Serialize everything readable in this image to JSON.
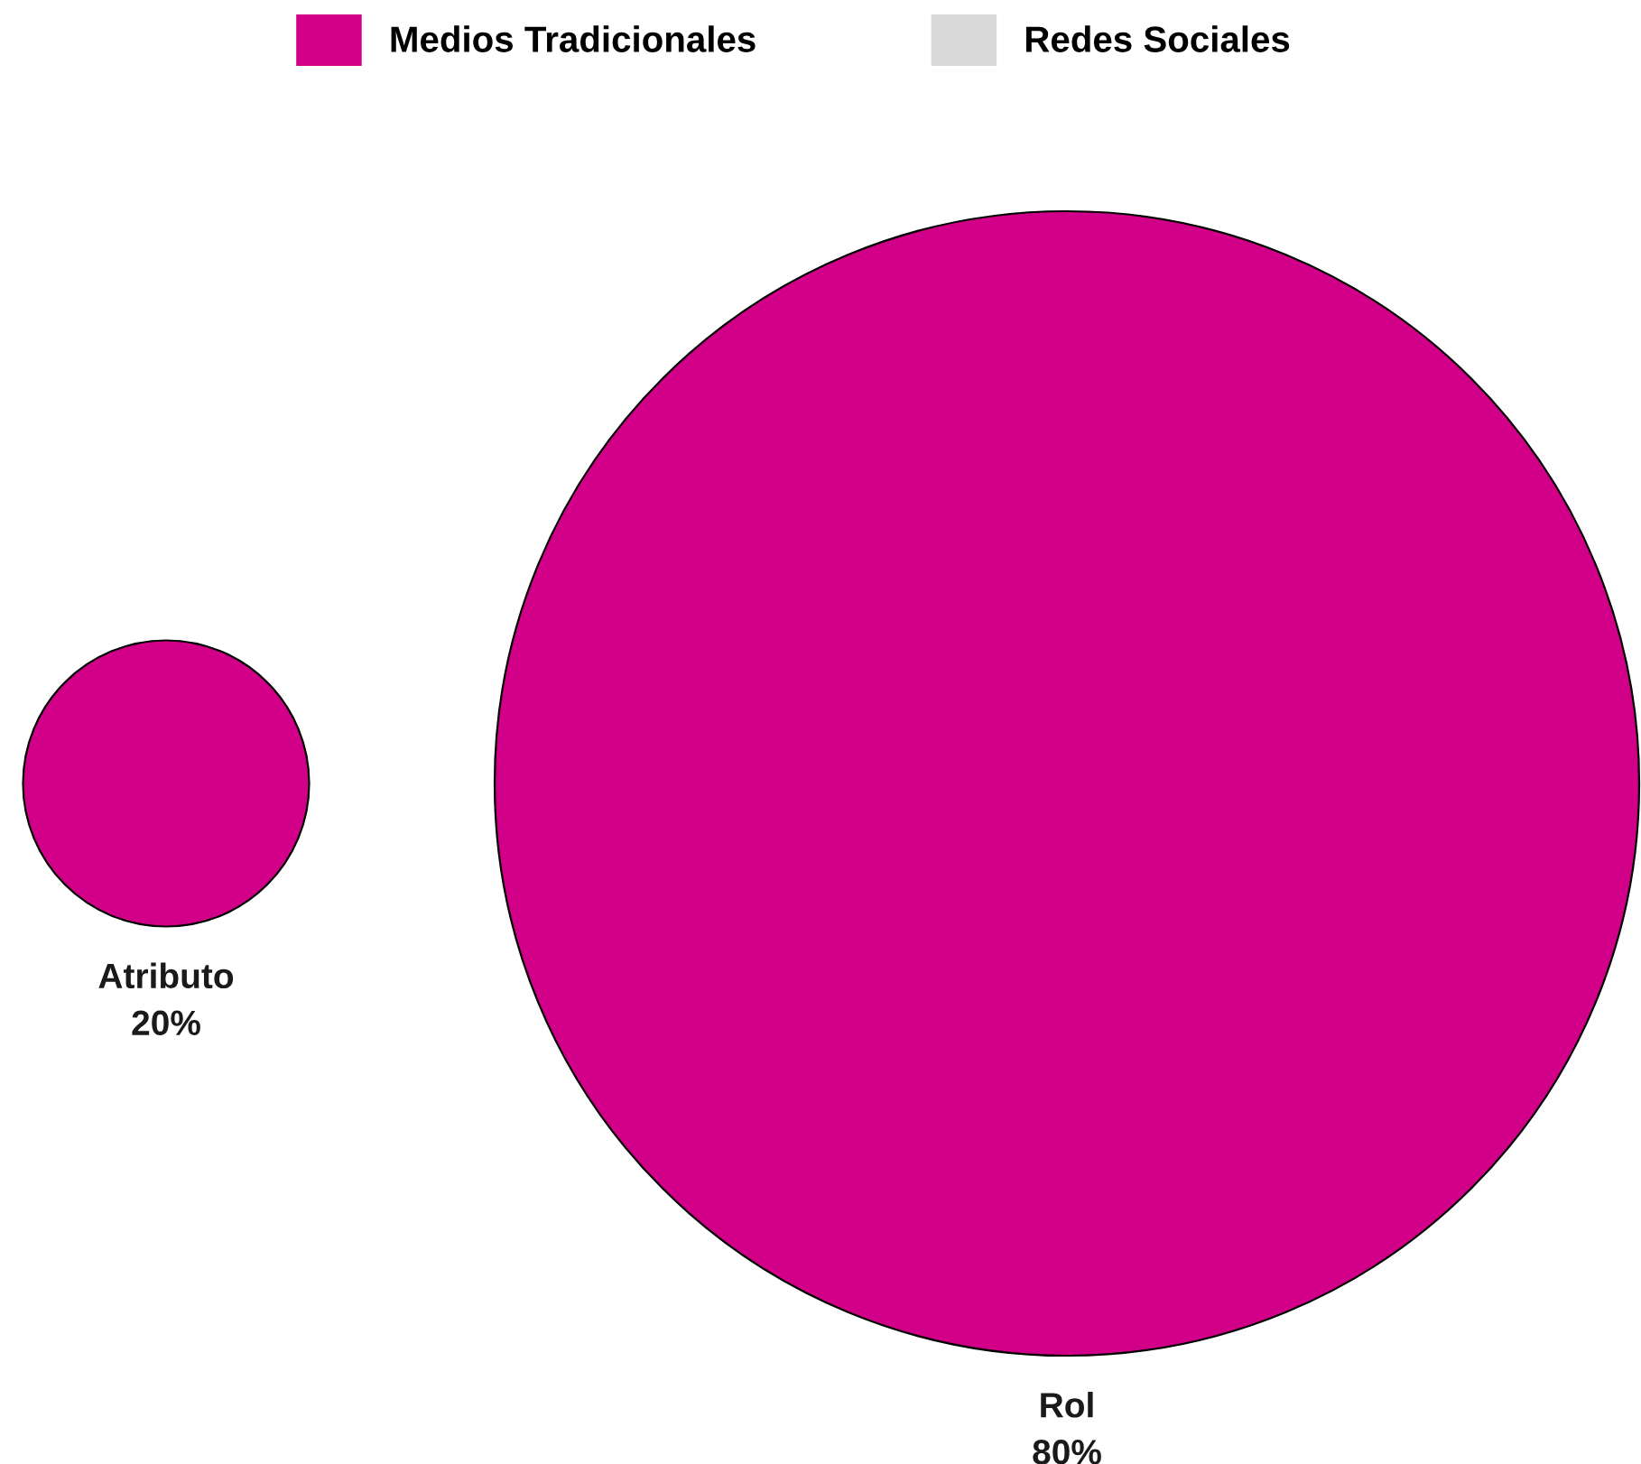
{
  "chart_data": {
    "type": "other",
    "categories": [
      "Atributo",
      "Rol"
    ],
    "legend": "top",
    "series": [
      {
        "name": "Medios Tradicionales",
        "color": "#d20089",
        "values": [
          20,
          80
        ],
        "value_labels": [
          "20%",
          "80%"
        ]
      },
      {
        "name": "Redes Sociales",
        "color": "#d9d9d9",
        "values": [
          null,
          null
        ]
      }
    ]
  }
}
